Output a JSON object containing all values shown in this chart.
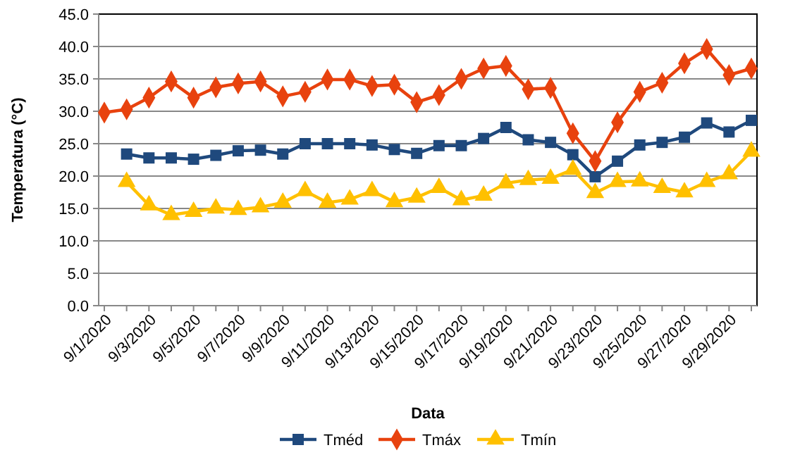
{
  "chart_data": {
    "type": "line",
    "xlabel": "Data",
    "ylabel": "Temperatura (°C)",
    "categories": [
      "9/1/2020",
      null,
      "9/3/2020",
      null,
      "9/5/2020",
      null,
      "9/7/2020",
      null,
      "9/9/2020",
      null,
      "9/11/2020",
      null,
      "9/13/2020",
      null,
      "9/15/2020",
      null,
      "9/17/2020",
      null,
      "9/19/2020",
      null,
      "9/21/2020",
      null,
      "9/23/2020",
      null,
      "9/25/2020",
      null,
      "9/27/2020",
      null,
      "9/29/2020",
      null
    ],
    "series": [
      {
        "name": "Tméd",
        "color": "#1f497d",
        "marker": "square",
        "values": [
          null,
          23.4,
          22.8,
          22.8,
          22.6,
          23.2,
          23.9,
          24.0,
          23.4,
          25.0,
          25.0,
          25.0,
          24.8,
          24.1,
          23.5,
          24.7,
          24.7,
          25.8,
          27.5,
          25.6,
          25.2,
          23.3,
          19.9,
          22.3,
          24.8,
          25.2,
          26.0,
          28.2,
          26.8,
          28.6
        ]
      },
      {
        "name": "Tmáx",
        "color": "#e8420e",
        "marker": "diamond",
        "values": [
          29.8,
          30.3,
          32.1,
          34.6,
          32.1,
          33.7,
          34.3,
          34.6,
          32.3,
          33.0,
          34.9,
          34.9,
          33.9,
          34.1,
          31.4,
          32.5,
          35.0,
          36.6,
          37.0,
          33.4,
          33.6,
          26.6,
          22.3,
          28.3,
          33.0,
          34.4,
          37.4,
          39.6,
          35.6,
          36.6
        ]
      },
      {
        "name": "Tmín",
        "color": "#ffc000",
        "marker": "triangle",
        "values": [
          null,
          19.1,
          15.5,
          14.0,
          14.5,
          15.0,
          14.8,
          15.2,
          15.9,
          17.7,
          15.9,
          16.4,
          17.7,
          16.0,
          16.7,
          18.2,
          16.3,
          17.0,
          18.9,
          19.4,
          19.6,
          21.0,
          17.4,
          19.1,
          19.2,
          18.2,
          17.5,
          19.1,
          20.3,
          23.8
        ]
      }
    ],
    "ylim": [
      0,
      45
    ],
    "yticks": [
      {
        "value": 0,
        "label": "0.0"
      },
      {
        "value": 5,
        "label": "5.0"
      },
      {
        "value": 10,
        "label": "10.0"
      },
      {
        "value": 15,
        "label": "15.0"
      },
      {
        "value": 20,
        "label": "20.0"
      },
      {
        "value": 25,
        "label": "25.0"
      },
      {
        "value": 30,
        "label": "30.0"
      },
      {
        "value": 35,
        "label": "35.0"
      },
      {
        "value": 40,
        "label": "40.0"
      },
      {
        "value": 45,
        "label": "45.0"
      }
    ],
    "grid": "y",
    "legend": "bottom"
  }
}
